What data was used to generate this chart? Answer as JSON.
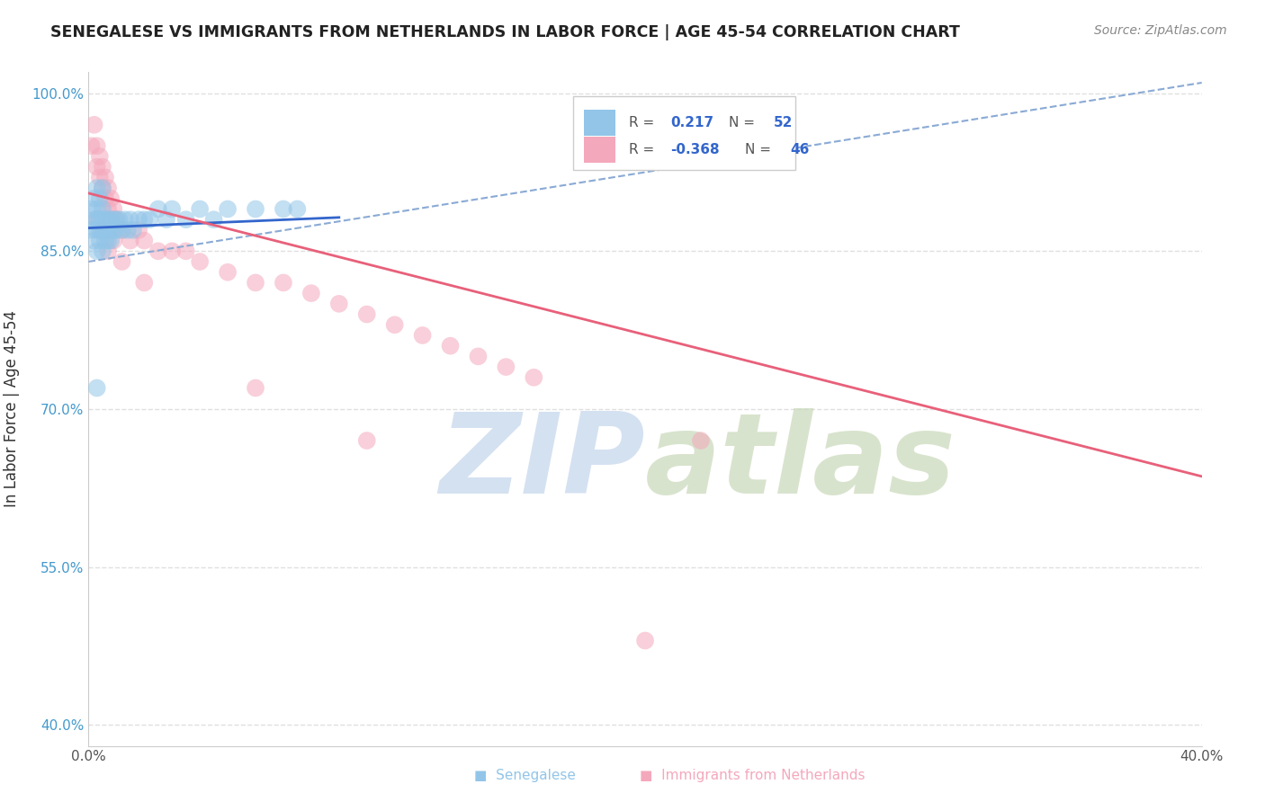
{
  "title": "SENEGALESE VS IMMIGRANTS FROM NETHERLANDS IN LABOR FORCE | AGE 45-54 CORRELATION CHART",
  "source": "Source: ZipAtlas.com",
  "ylabel": "In Labor Force | Age 45-54",
  "xlim": [
    0.0,
    0.4
  ],
  "ylim": [
    0.38,
    1.02
  ],
  "xticks": [
    0.0,
    0.05,
    0.1,
    0.15,
    0.2,
    0.25,
    0.3,
    0.35,
    0.4
  ],
  "xticklabels": [
    "0.0%",
    "",
    "",
    "",
    "",
    "",
    "",
    "",
    "40.0%"
  ],
  "yticks": [
    0.4,
    0.55,
    0.7,
    0.85,
    1.0
  ],
  "yticklabels": [
    "40.0%",
    "55.0%",
    "70.0%",
    "85.0%",
    "100.0%"
  ],
  "blue_color": "#92C5E8",
  "pink_color": "#F4A8BC",
  "blue_line_color": "#3366CC",
  "pink_line_color": "#E8607A",
  "dashed_line_color": "#8AAAD4",
  "watermark_color": "#D0DEF0",
  "background_color": "#FFFFFF",
  "grid_color": "#E0E0E0",
  "blue_scatter_x": [
    0.001,
    0.001,
    0.002,
    0.002,
    0.002,
    0.003,
    0.003,
    0.003,
    0.003,
    0.003,
    0.004,
    0.004,
    0.004,
    0.004,
    0.005,
    0.005,
    0.005,
    0.005,
    0.005,
    0.006,
    0.006,
    0.006,
    0.007,
    0.007,
    0.007,
    0.008,
    0.008,
    0.008,
    0.009,
    0.009,
    0.01,
    0.01,
    0.011,
    0.012,
    0.013,
    0.014,
    0.015,
    0.016,
    0.018,
    0.02,
    0.022,
    0.025,
    0.028,
    0.03,
    0.035,
    0.04,
    0.045,
    0.05,
    0.06,
    0.07,
    0.003,
    0.075
  ],
  "blue_scatter_y": [
    0.87,
    0.89,
    0.88,
    0.86,
    0.9,
    0.88,
    0.87,
    0.85,
    0.89,
    0.91,
    0.88,
    0.86,
    0.87,
    0.9,
    0.88,
    0.85,
    0.87,
    0.89,
    0.91,
    0.88,
    0.86,
    0.87,
    0.88,
    0.86,
    0.87,
    0.88,
    0.87,
    0.86,
    0.88,
    0.87,
    0.88,
    0.87,
    0.88,
    0.87,
    0.88,
    0.87,
    0.88,
    0.87,
    0.88,
    0.88,
    0.88,
    0.89,
    0.88,
    0.89,
    0.88,
    0.89,
    0.88,
    0.89,
    0.89,
    0.89,
    0.72,
    0.89
  ],
  "pink_scatter_x": [
    0.001,
    0.002,
    0.003,
    0.003,
    0.004,
    0.004,
    0.005,
    0.005,
    0.006,
    0.006,
    0.007,
    0.007,
    0.008,
    0.008,
    0.009,
    0.01,
    0.012,
    0.015,
    0.018,
    0.02,
    0.025,
    0.03,
    0.035,
    0.04,
    0.05,
    0.06,
    0.07,
    0.08,
    0.09,
    0.1,
    0.11,
    0.12,
    0.13,
    0.14,
    0.15,
    0.16,
    0.003,
    0.005,
    0.007,
    0.009,
    0.012,
    0.02,
    0.06,
    0.1,
    0.2,
    0.22
  ],
  "pink_scatter_y": [
    0.95,
    0.97,
    0.95,
    0.93,
    0.92,
    0.94,
    0.91,
    0.93,
    0.9,
    0.92,
    0.89,
    0.91,
    0.9,
    0.88,
    0.89,
    0.88,
    0.87,
    0.86,
    0.87,
    0.86,
    0.85,
    0.85,
    0.85,
    0.84,
    0.83,
    0.82,
    0.82,
    0.81,
    0.8,
    0.79,
    0.78,
    0.77,
    0.76,
    0.75,
    0.74,
    0.73,
    0.88,
    0.87,
    0.85,
    0.86,
    0.84,
    0.82,
    0.72,
    0.67,
    0.48,
    0.67
  ],
  "blue_line_x0": 0.0,
  "blue_line_y0": 0.872,
  "blue_line_x1": 0.09,
  "blue_line_y1": 0.882,
  "pink_line_x0": 0.0,
  "pink_line_y0": 0.905,
  "pink_line_x1": 0.4,
  "pink_line_y1": 0.636,
  "dash_line_x0": 0.0,
  "dash_line_y0": 0.84,
  "dash_line_x1": 0.4,
  "dash_line_y1": 1.01
}
